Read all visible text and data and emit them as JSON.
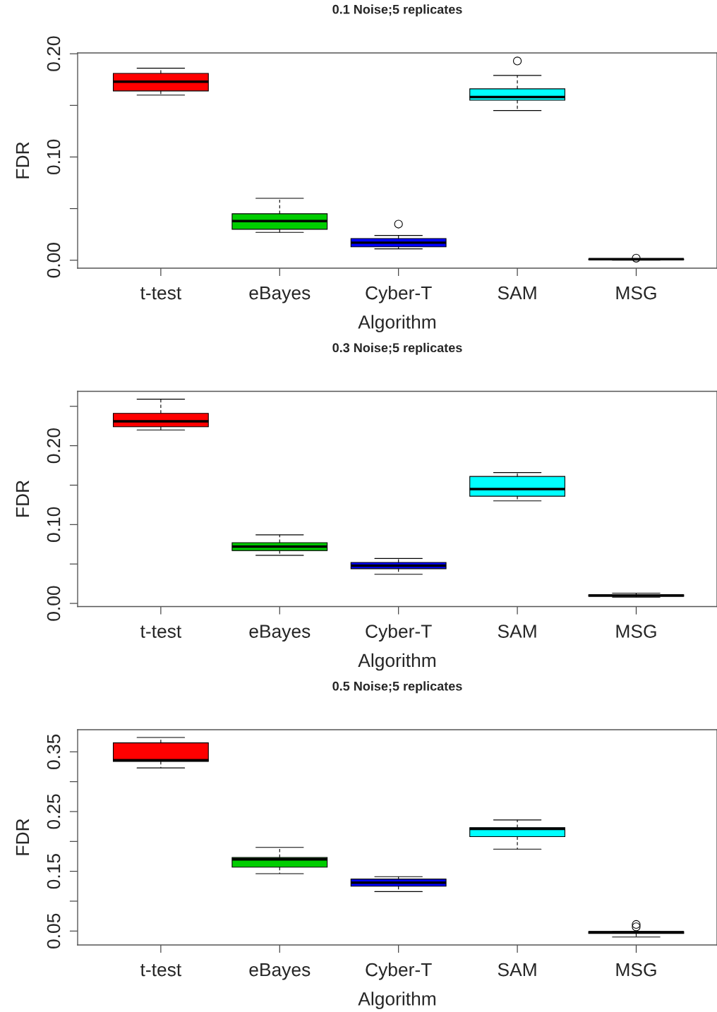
{
  "chart_data": [
    {
      "type": "box",
      "title": "0.1 Noise;5 replicates",
      "xlabel": "Algorithm",
      "ylabel": "FDR",
      "categories": [
        "t-test",
        "eBayes",
        "Cyber-T",
        "SAM",
        "MSG"
      ],
      "colors": [
        "#ff0000",
        "#00cd00",
        "#0000ff",
        "#00ffff",
        "#cd00cd"
      ],
      "boxes": [
        {
          "low": 0.16,
          "q1": 0.164,
          "median": 0.173,
          "q3": 0.181,
          "high": 0.186
        },
        {
          "low": 0.027,
          "q1": 0.03,
          "median": 0.038,
          "q3": 0.045,
          "high": 0.06
        },
        {
          "low": 0.011,
          "q1": 0.013,
          "median": 0.017,
          "q3": 0.021,
          "high": 0.024,
          "outliers": [
            0.035
          ]
        },
        {
          "low": 0.145,
          "q1": 0.155,
          "median": 0.158,
          "q3": 0.166,
          "high": 0.179,
          "outliers": [
            0.193
          ]
        },
        {
          "low": 0.0,
          "q1": 0.0005,
          "median": 0.001,
          "q3": 0.0012,
          "high": 0.0015,
          "outliers": [
            0.002
          ]
        }
      ],
      "ylim": [
        -0.0077,
        0.2008
      ],
      "yticks": [
        {
          "value": 0.0,
          "label": "0.00"
        },
        {
          "value": 0.05,
          "label": null
        },
        {
          "value": 0.1,
          "label": "0.10"
        },
        {
          "value": 0.15,
          "label": null
        },
        {
          "value": 0.2,
          "label": "0.20"
        }
      ],
      "grid": false,
      "legend": false
    },
    {
      "type": "box",
      "title": "0.3 Noise;5 replicates",
      "xlabel": "Algorithm",
      "ylabel": "FDR",
      "categories": [
        "t-test",
        "eBayes",
        "Cyber-T",
        "SAM",
        "MSG"
      ],
      "colors": [
        "#ff0000",
        "#00cd00",
        "#0000ff",
        "#00ffff",
        "#cd00cd"
      ],
      "boxes": [
        {
          "low": 0.22,
          "q1": 0.224,
          "median": 0.231,
          "q3": 0.241,
          "high": 0.259
        },
        {
          "low": 0.061,
          "q1": 0.067,
          "median": 0.072,
          "q3": 0.077,
          "high": 0.087
        },
        {
          "low": 0.037,
          "q1": 0.044,
          "median": 0.048,
          "q3": 0.052,
          "high": 0.057
        },
        {
          "low": 0.13,
          "q1": 0.136,
          "median": 0.145,
          "q3": 0.161,
          "high": 0.166
        },
        {
          "low": 0.008,
          "q1": 0.009,
          "median": 0.01,
          "q3": 0.011,
          "high": 0.013
        }
      ],
      "ylim": [
        -0.004,
        0.269
      ],
      "yticks": [
        {
          "value": 0.0,
          "label": "0.00"
        },
        {
          "value": 0.05,
          "label": null
        },
        {
          "value": 0.1,
          "label": "0.10"
        },
        {
          "value": 0.15,
          "label": null
        },
        {
          "value": 0.2,
          "label": "0.20"
        },
        {
          "value": 0.25,
          "label": null
        }
      ],
      "grid": false,
      "legend": false
    },
    {
      "type": "box",
      "title": "0.5 Noise;5 replicates",
      "xlabel": "Algorithm",
      "ylabel": "FDR",
      "categories": [
        "t-test",
        "eBayes",
        "Cyber-T",
        "SAM",
        "MSG"
      ],
      "colors": [
        "#ff0000",
        "#00cd00",
        "#0000ff",
        "#00ffff",
        "#cd00cd"
      ],
      "boxes": [
        {
          "low": 0.323,
          "q1": 0.334,
          "median": 0.336,
          "q3": 0.365,
          "high": 0.374
        },
        {
          "low": 0.146,
          "q1": 0.157,
          "median": 0.17,
          "q3": 0.173,
          "high": 0.19
        },
        {
          "low": 0.116,
          "q1": 0.125,
          "median": 0.131,
          "q3": 0.137,
          "high": 0.141
        },
        {
          "low": 0.187,
          "q1": 0.208,
          "median": 0.221,
          "q3": 0.223,
          "high": 0.236
        },
        {
          "low": 0.04,
          "q1": 0.046,
          "median": 0.048,
          "q3": 0.049,
          "high": 0.049,
          "outliers": [
            0.057,
            0.061
          ]
        }
      ],
      "ylim": [
        0.0267,
        0.387
      ],
      "yticks": [
        {
          "value": 0.05,
          "label": "0.05"
        },
        {
          "value": 0.1,
          "label": null
        },
        {
          "value": 0.15,
          "label": "0.15"
        },
        {
          "value": 0.2,
          "label": null
        },
        {
          "value": 0.25,
          "label": "0.25"
        },
        {
          "value": 0.3,
          "label": null
        },
        {
          "value": 0.35,
          "label": "0.35"
        }
      ],
      "grid": false,
      "legend": false
    }
  ]
}
